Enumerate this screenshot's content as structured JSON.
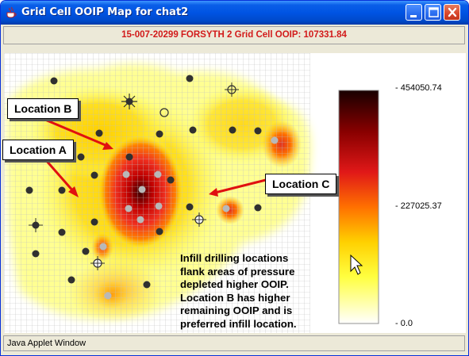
{
  "window": {
    "title": "Grid Cell OOIP Map for chat2",
    "buttons": {
      "minimize": "minimize-icon",
      "maximize": "maximize-icon",
      "close": "close-icon"
    }
  },
  "header": {
    "text": "15-007-20299  FORSYTH 2    Grid Cell OOIP: 107331.84"
  },
  "map": {
    "callouts": {
      "location_b": "Location B",
      "location_a": "Location A",
      "location_c": "Location C"
    },
    "note": [
      "Infill drilling locations",
      "flank areas of pressure",
      "depleted higher OOIP.",
      "Location B has higher",
      "remaining OOIP and is",
      "preferred infill location."
    ],
    "colors": {
      "arrow": "#e01010",
      "well": "#303030",
      "well_gray": "#b8b8b8",
      "grid": "#c8c8c8"
    }
  },
  "legend": {
    "max_label": "- 454050.74",
    "mid_label": "- 227025.37",
    "min_label": "- 0.0",
    "gradient": [
      "#180000",
      "#8a0000",
      "#e01818",
      "#ff7000",
      "#ffd000",
      "#ffff40",
      "#ffffff"
    ]
  },
  "status_bar": {
    "text": "Java Applet Window"
  }
}
